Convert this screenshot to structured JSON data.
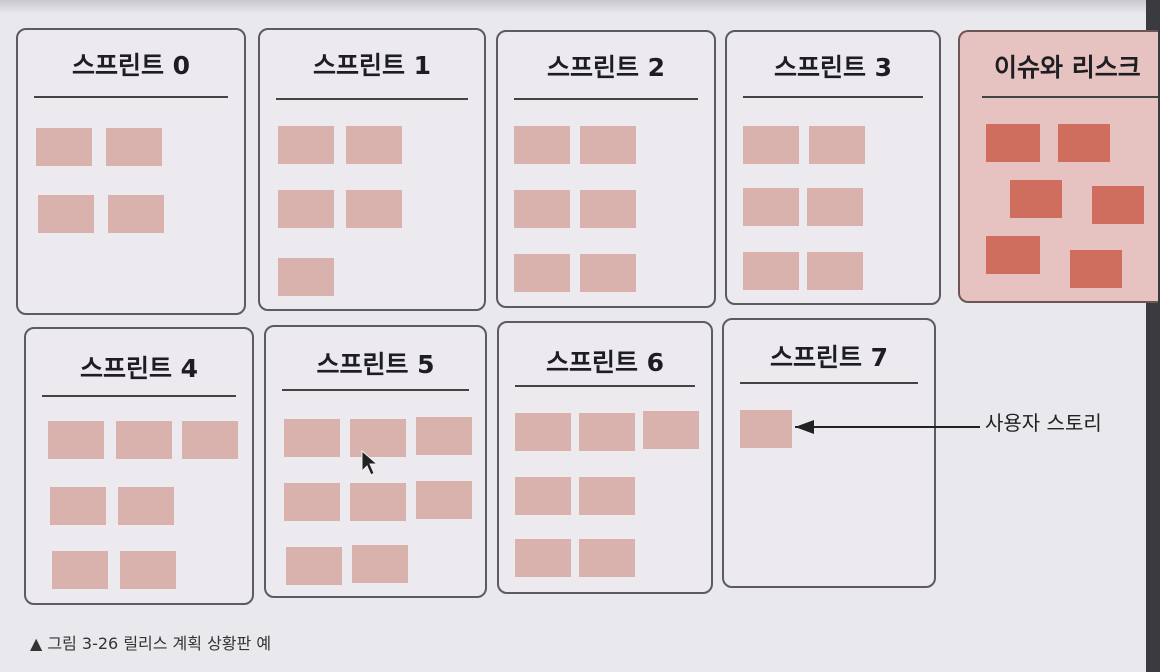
{
  "panels": [
    {
      "title": "스프린트 0"
    },
    {
      "title": "스프린트 1"
    },
    {
      "title": "스프린트 2"
    },
    {
      "title": "스프린트 3"
    },
    {
      "title": "이슈와 리스크"
    },
    {
      "title": "스프린트 4"
    },
    {
      "title": "스프린트 5"
    },
    {
      "title": "스프린트 6"
    },
    {
      "title": "스프린트 7"
    }
  ],
  "annotation": {
    "label": "사용자 스토리"
  },
  "caption": "▲ 그림 3-26 릴리스 계획 상황판 예",
  "colors": {
    "story_card": "#d9b2ad",
    "risk_card": "#cf6d5e",
    "risk_panel": "#e6c3c0",
    "panel_border": "#5b5b60"
  }
}
